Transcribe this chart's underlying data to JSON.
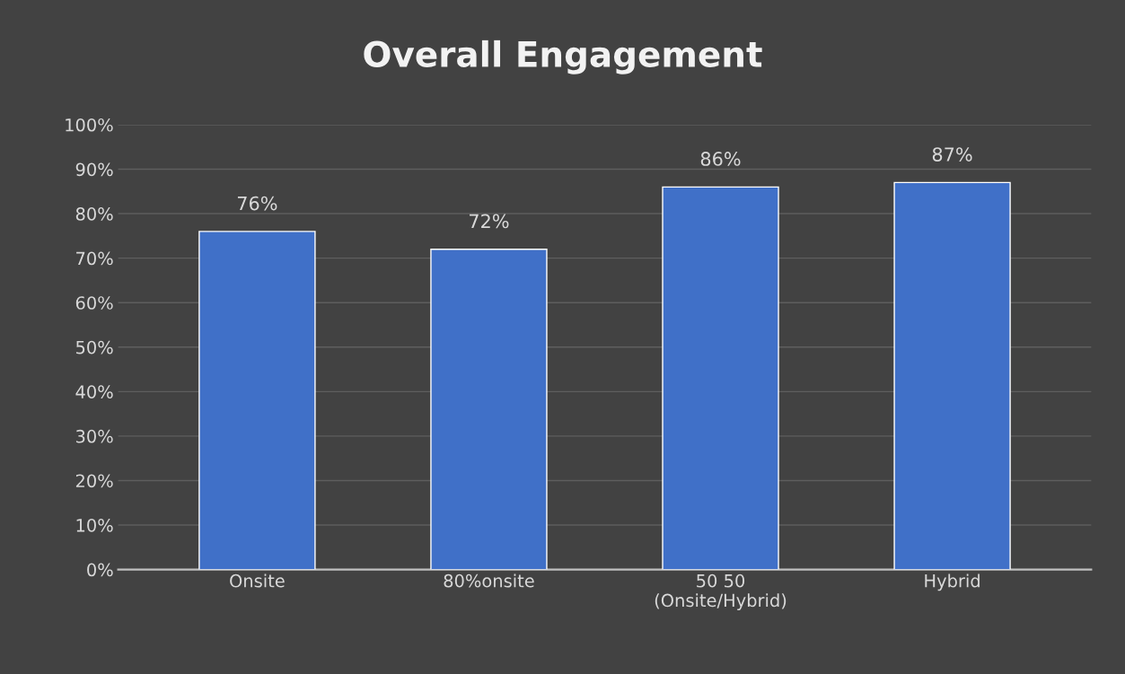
{
  "chart_data": {
    "type": "bar",
    "title": "Overall Engagement",
    "categories": [
      "Onsite",
      "80%onsite",
      "50 50\n(Onsite/Hybrid)",
      "Hybrid"
    ],
    "values": [
      76,
      72,
      86,
      87
    ],
    "value_labels": [
      "76%",
      "72%",
      "86%",
      "87%"
    ],
    "color": "#4070c8",
    "ylim": [
      0,
      100
    ],
    "yticks": [
      {
        "value": 0,
        "label": "0%"
      },
      {
        "value": 10,
        "label": "10%"
      },
      {
        "value": 20,
        "label": "20%"
      },
      {
        "value": 30,
        "label": "30%"
      },
      {
        "value": 40,
        "label": "40%"
      },
      {
        "value": 50,
        "label": "50%"
      },
      {
        "value": 60,
        "label": "60%"
      },
      {
        "value": 70,
        "label": "70%"
      },
      {
        "value": 80,
        "label": "80%"
      },
      {
        "value": 90,
        "label": "90%"
      },
      {
        "value": 100,
        "label": "100%"
      }
    ],
    "grid": "y",
    "legend": false
  }
}
